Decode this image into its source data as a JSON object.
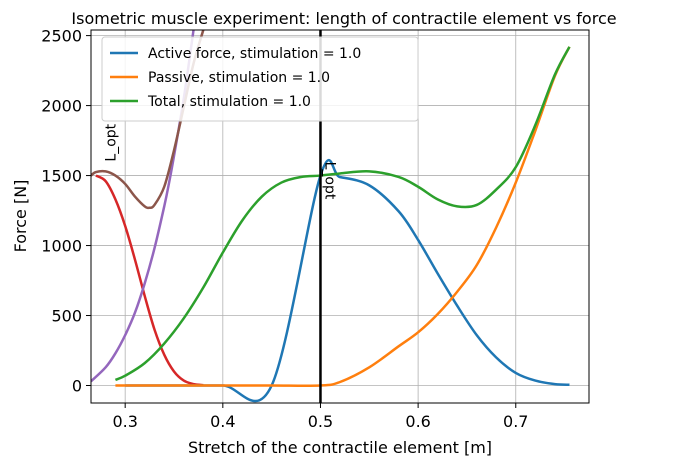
{
  "chart_data": {
    "type": "line",
    "title": "Isometric muscle experiment: length of contractile element vs force",
    "xlabel": "Stretch of the contractile element [m]",
    "ylabel": "Force [N]",
    "xlim": [
      0.265,
      0.775
    ],
    "ylim": [
      -125,
      2540
    ],
    "xticks": [
      0.3,
      0.4,
      0.5,
      0.6,
      0.7
    ],
    "xtick_labels": [
      "0.3",
      "0.4",
      "0.5",
      "0.6",
      "0.7"
    ],
    "yticks": [
      0,
      500,
      1000,
      1500,
      2000,
      2500
    ],
    "ytick_labels": [
      "0",
      "500",
      "1000",
      "1500",
      "2000",
      "2500"
    ],
    "grid": true,
    "legend_position": "top-left",
    "vertical_line": {
      "x": 0.5,
      "label": "L_opt",
      "color": "#000000"
    },
    "annotations": [
      {
        "text": "L_opt",
        "x": 0.505,
        "y": 1600,
        "rotation": 90
      },
      {
        "text": "L_opt",
        "x": 0.29,
        "y": 1600,
        "rotation": -90
      }
    ],
    "series": [
      {
        "name": "Active force, stimulation = 1.0",
        "color": "#1f77b4",
        "in_legend": true,
        "x": [
          0.3,
          0.35,
          0.4,
          0.45,
          0.5,
          0.52,
          0.55,
          0.58,
          0.6,
          0.62,
          0.64,
          0.66,
          0.68,
          0.7,
          0.72,
          0.74,
          0.755
        ],
        "y": [
          0,
          0,
          0,
          0,
          1500,
          1489,
          1430,
          1245,
          1040,
          800,
          570,
          360,
          200,
          90,
          35,
          10,
          5
        ]
      },
      {
        "name": "Passive, stimulation = 1.0",
        "color": "#ff7f0e",
        "in_legend": true,
        "x": [
          0.29,
          0.3,
          0.35,
          0.4,
          0.45,
          0.5,
          0.52,
          0.55,
          0.58,
          0.6,
          0.62,
          0.64,
          0.66,
          0.68,
          0.7,
          0.72,
          0.74,
          0.755
        ],
        "y": [
          0,
          0,
          0,
          0,
          0,
          0,
          25,
          130,
          280,
          380,
          510,
          670,
          860,
          1130,
          1450,
          1820,
          2210,
          2420
        ]
      },
      {
        "name": "Total, stimulation = 1.0",
        "color": "#2ca02c",
        "in_legend": true,
        "x": [
          0.29,
          0.3,
          0.32,
          0.34,
          0.36,
          0.38,
          0.4,
          0.42,
          0.44,
          0.46,
          0.48,
          0.5,
          0.52,
          0.55,
          0.58,
          0.6,
          0.62,
          0.64,
          0.66,
          0.68,
          0.7,
          0.72,
          0.74,
          0.755
        ],
        "y": [
          40,
          70,
          160,
          300,
          480,
          700,
          950,
          1180,
          1350,
          1450,
          1490,
          1500,
          1515,
          1530,
          1490,
          1420,
          1330,
          1280,
          1290,
          1400,
          1560,
          1860,
          2220,
          2420
        ]
      },
      {
        "name": "",
        "color": "#d62728",
        "in_legend": false,
        "x": [
          0.27,
          0.28,
          0.29,
          0.3,
          0.31,
          0.32,
          0.33,
          0.34,
          0.35,
          0.36,
          0.37,
          0.38
        ],
        "y": [
          1500,
          1460,
          1330,
          1140,
          900,
          640,
          400,
          220,
          100,
          35,
          10,
          3
        ]
      },
      {
        "name": "",
        "color": "#9467bd",
        "in_legend": false,
        "x": [
          0.265,
          0.28,
          0.29,
          0.3,
          0.31,
          0.32,
          0.33,
          0.34,
          0.345,
          0.35,
          0.36,
          0.37
        ],
        "y": [
          30,
          130,
          230,
          360,
          520,
          730,
          980,
          1280,
          1450,
          1640,
          2050,
          2540
        ]
      },
      {
        "name": "",
        "color": "#8c564b",
        "in_legend": false,
        "x": [
          0.265,
          0.27,
          0.28,
          0.29,
          0.3,
          0.31,
          0.32,
          0.325,
          0.33,
          0.34,
          0.35,
          0.36,
          0.37,
          0.38
        ],
        "y": [
          1500,
          1525,
          1530,
          1500,
          1440,
          1350,
          1280,
          1270,
          1290,
          1420,
          1680,
          1990,
          2300,
          2540
        ]
      }
    ]
  }
}
